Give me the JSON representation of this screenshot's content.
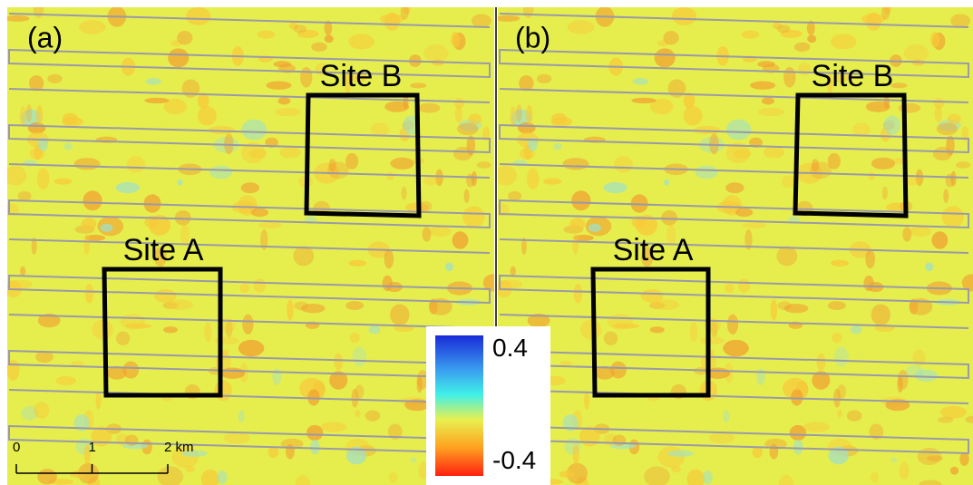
{
  "panels": [
    {
      "label": "(a)",
      "site_a": "Site A",
      "site_b": "Site B"
    },
    {
      "label": "(b)",
      "site_a": "Site A",
      "site_b": "Site B"
    }
  ],
  "colorbar": {
    "lim": [
      -0.5,
      0.5
    ],
    "ticks": [
      0.4,
      -0.4
    ]
  },
  "scale_bar": {
    "lim": [
      0,
      2
    ],
    "ticks": [
      0,
      1,
      {
        "value": 2,
        "label": "2 km"
      }
    ]
  }
}
